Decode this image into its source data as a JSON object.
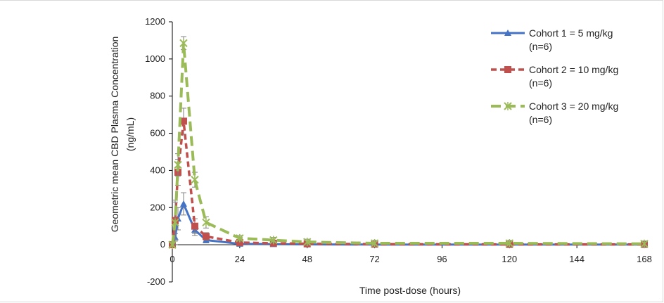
{
  "chart_data": {
    "type": "line",
    "title": "",
    "ylabel_line1": "Geometric mean CBD Plasma Concentration",
    "ylabel_line2": "(ng/mL)",
    "xlabel": "Time post-dose (hours)",
    "xlim": [
      0,
      168
    ],
    "ylim": [
      -200,
      1200
    ],
    "xticks": [
      0,
      24,
      48,
      72,
      96,
      120,
      144,
      168
    ],
    "yticks": [
      -200,
      0,
      200,
      400,
      600,
      800,
      1000,
      1200
    ],
    "grid": false,
    "legend_position": "top-right",
    "series": [
      {
        "name_line1": "Cohort 1 = 5 mg/kg",
        "name_line2": "(n=6)",
        "color": "#4472C4",
        "marker": "triangle",
        "dash": "solid",
        "points": [
          {
            "x": 0,
            "y": 0,
            "err": 0
          },
          {
            "x": 1,
            "y": 40,
            "err": 20
          },
          {
            "x": 2,
            "y": 140,
            "err": 60
          },
          {
            "x": 4,
            "y": 220,
            "err": 60
          },
          {
            "x": 8,
            "y": 80,
            "err": 30
          },
          {
            "x": 12,
            "y": 25,
            "err": 15
          },
          {
            "x": 24,
            "y": 5,
            "err": 10
          },
          {
            "x": 36,
            "y": 3,
            "err": 5
          },
          {
            "x": 48,
            "y": 2,
            "err": 5
          },
          {
            "x": 72,
            "y": 1,
            "err": 3
          },
          {
            "x": 120,
            "y": 1,
            "err": 3
          },
          {
            "x": 168,
            "y": 1,
            "err": 3
          }
        ]
      },
      {
        "name_line1": "Cohort 2 = 10 mg/kg",
        "name_line2": "(n=6)",
        "color": "#C0504D",
        "marker": "square",
        "dash": "dashed",
        "points": [
          {
            "x": 0,
            "y": 0,
            "err": 0
          },
          {
            "x": 1,
            "y": 130,
            "err": 100
          },
          {
            "x": 2,
            "y": 390,
            "err": 70
          },
          {
            "x": 4,
            "y": 665,
            "err": 70
          },
          {
            "x": 8,
            "y": 100,
            "err": 40
          },
          {
            "x": 12,
            "y": 45,
            "err": 20
          },
          {
            "x": 24,
            "y": 12,
            "err": 15
          },
          {
            "x": 36,
            "y": 8,
            "err": 10
          },
          {
            "x": 48,
            "y": 5,
            "err": 10
          },
          {
            "x": 72,
            "y": 3,
            "err": 10
          },
          {
            "x": 120,
            "y": 2,
            "err": 10
          },
          {
            "x": 168,
            "y": 2,
            "err": 10
          }
        ]
      },
      {
        "name_line1": "Cohort 3 = 20 mg/kg",
        "name_line2": "(n=6)",
        "color": "#9BBB59",
        "marker": "x",
        "dash": "longdash",
        "points": [
          {
            "x": 0,
            "y": 0,
            "err": 0
          },
          {
            "x": 1,
            "y": 120,
            "err": 120
          },
          {
            "x": 2,
            "y": 430,
            "err": 60
          },
          {
            "x": 4,
            "y": 1085,
            "err": 35
          },
          {
            "x": 8,
            "y": 350,
            "err": 40
          },
          {
            "x": 12,
            "y": 120,
            "err": 30
          },
          {
            "x": 24,
            "y": 35,
            "err": 15
          },
          {
            "x": 36,
            "y": 25,
            "err": 15
          },
          {
            "x": 48,
            "y": 15,
            "err": 15
          },
          {
            "x": 72,
            "y": 8,
            "err": 15
          },
          {
            "x": 120,
            "y": 8,
            "err": 15
          },
          {
            "x": 168,
            "y": 5,
            "err": 15
          }
        ]
      }
    ]
  }
}
